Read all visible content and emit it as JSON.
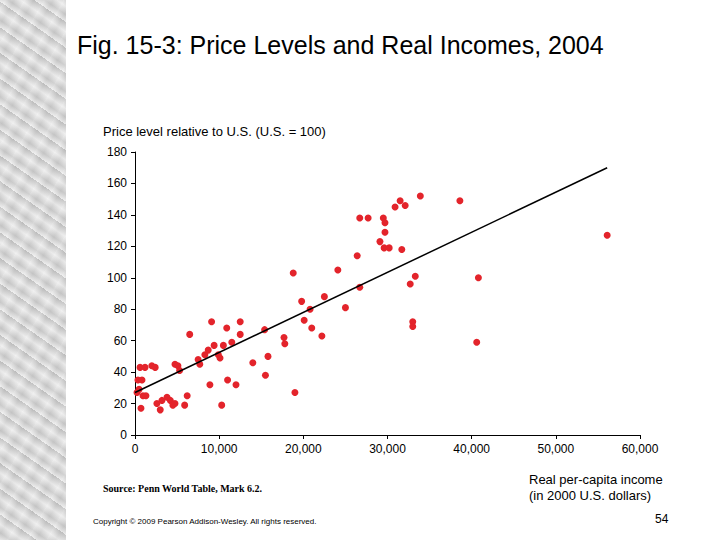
{
  "chart_data": {
    "type": "scatter",
    "title": "Fig. 15-3: Price Levels and Real Incomes, 2004",
    "y_label": "Price level relative to U.S. (U.S. = 100)",
    "x_label": "Real per-capita income\n(in 2000 U.S. dollars)",
    "source": "Source: Penn World Table, Mark 6.2.",
    "copyright": "Copyright © 2009 Pearson Addison-Wesley. All rights reserved.",
    "page_number": "54",
    "xlim": [
      0,
      60000
    ],
    "xticks": [
      0,
      {
        "value": 10000,
        "label": "10,000"
      },
      {
        "value": 20000,
        "label": "20,000"
      },
      {
        "value": 30000,
        "label": "30,000"
      },
      {
        "value": 40000,
        "label": "40,000"
      },
      {
        "value": 50000,
        "label": "50,000"
      },
      {
        "value": 60000,
        "label": "60,000"
      }
    ],
    "ylim": [
      0,
      180
    ],
    "yticks": [
      0,
      20,
      40,
      60,
      80,
      100,
      120,
      140,
      160,
      180
    ],
    "grid": false,
    "series": [
      {
        "type": "scatter",
        "color": "#e3242b",
        "marker": "circle",
        "x": [
          240,
          480,
          350,
          600,
          830,
          950,
          710,
          1190,
          1300,
          2000,
          2400,
          2600,
          3000,
          3200,
          3800,
          4200,
          4500,
          4750,
          4750,
          5100,
          5300,
          5900,
          6200,
          6500,
          7500,
          7700,
          8300,
          8700,
          8900,
          9100,
          9400,
          9900,
          10100,
          10300,
          10500,
          10900,
          11000,
          11500,
          12000,
          12500,
          12500,
          14000,
          15400,
          15500,
          15800,
          17700,
          17800,
          18800,
          19000,
          19800,
          20100,
          20800,
          21000,
          22200,
          22500,
          24100,
          25000,
          26400,
          26700,
          26700,
          27700,
          29100,
          29500,
          29600,
          29700,
          29700,
          30200,
          30900,
          31500,
          31700,
          32100,
          32700,
          33000,
          33000,
          33300,
          33900,
          38600,
          40600,
          40800,
          56100
        ],
        "values": [
          27,
          29,
          35,
          43,
          35,
          25,
          17,
          43,
          25,
          44,
          43,
          20,
          16,
          22,
          24,
          22,
          19,
          20,
          45,
          44,
          41,
          19,
          25,
          64,
          48,
          45,
          51,
          54,
          32,
          72,
          57,
          51,
          49,
          19,
          57,
          68,
          35,
          59,
          32,
          72,
          64,
          46,
          67,
          38,
          50,
          62,
          58,
          103,
          27,
          85,
          73,
          80,
          68,
          63,
          88,
          105,
          81,
          114,
          94,
          138,
          138,
          123,
          138,
          119,
          129,
          135,
          119,
          145,
          149,
          118,
          146,
          96,
          72,
          69,
          101,
          152,
          149,
          59,
          100,
          127
        ]
      },
      {
        "type": "line",
        "color": "#000000",
        "line_style": "solid",
        "x": [
          0,
          56100
        ],
        "values": [
          27,
          170
        ]
      }
    ]
  }
}
